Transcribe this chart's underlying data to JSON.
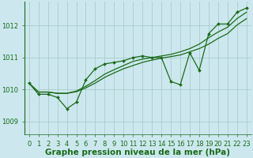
{
  "background_color": "#cce8ee",
  "grid_color": "#aacccc",
  "line_color": "#1a6b1a",
  "xlabel": "Graphe pression niveau de la mer (hPa)",
  "ylim": [
    1008.6,
    1012.75
  ],
  "xlim": [
    -0.5,
    23.5
  ],
  "yticks": [
    1009,
    1010,
    1011,
    1012
  ],
  "xticks": [
    0,
    1,
    2,
    3,
    4,
    5,
    6,
    7,
    8,
    9,
    10,
    11,
    12,
    13,
    14,
    15,
    16,
    17,
    18,
    19,
    20,
    21,
    22,
    23
  ],
  "series_jagged": [
    1010.2,
    1009.85,
    1009.85,
    1009.75,
    1009.4,
    1009.6,
    1010.3,
    1010.65,
    1010.8,
    1010.85,
    1010.9,
    1011.0,
    1011.05,
    1011.0,
    1011.0,
    1010.25,
    1010.15,
    1011.15,
    1010.6,
    1011.75,
    1012.05,
    1012.05,
    1012.42,
    1012.55
  ],
  "series_trend_lo": [
    1010.2,
    1009.92,
    1009.92,
    1009.88,
    1009.88,
    1009.93,
    1010.05,
    1010.2,
    1010.38,
    1010.52,
    1010.65,
    1010.75,
    1010.85,
    1010.92,
    1010.98,
    1011.03,
    1011.08,
    1011.18,
    1011.28,
    1011.42,
    1011.6,
    1011.75,
    1012.02,
    1012.22
  ],
  "series_trend_hi": [
    1010.2,
    1009.92,
    1009.92,
    1009.88,
    1009.88,
    1009.95,
    1010.1,
    1010.28,
    1010.48,
    1010.62,
    1010.75,
    1010.88,
    1010.95,
    1011.0,
    1011.05,
    1011.1,
    1011.18,
    1011.28,
    1011.42,
    1011.62,
    1011.8,
    1011.95,
    1012.22,
    1012.42
  ],
  "tick_fontsize": 6.0,
  "xlabel_fontsize": 7.5
}
